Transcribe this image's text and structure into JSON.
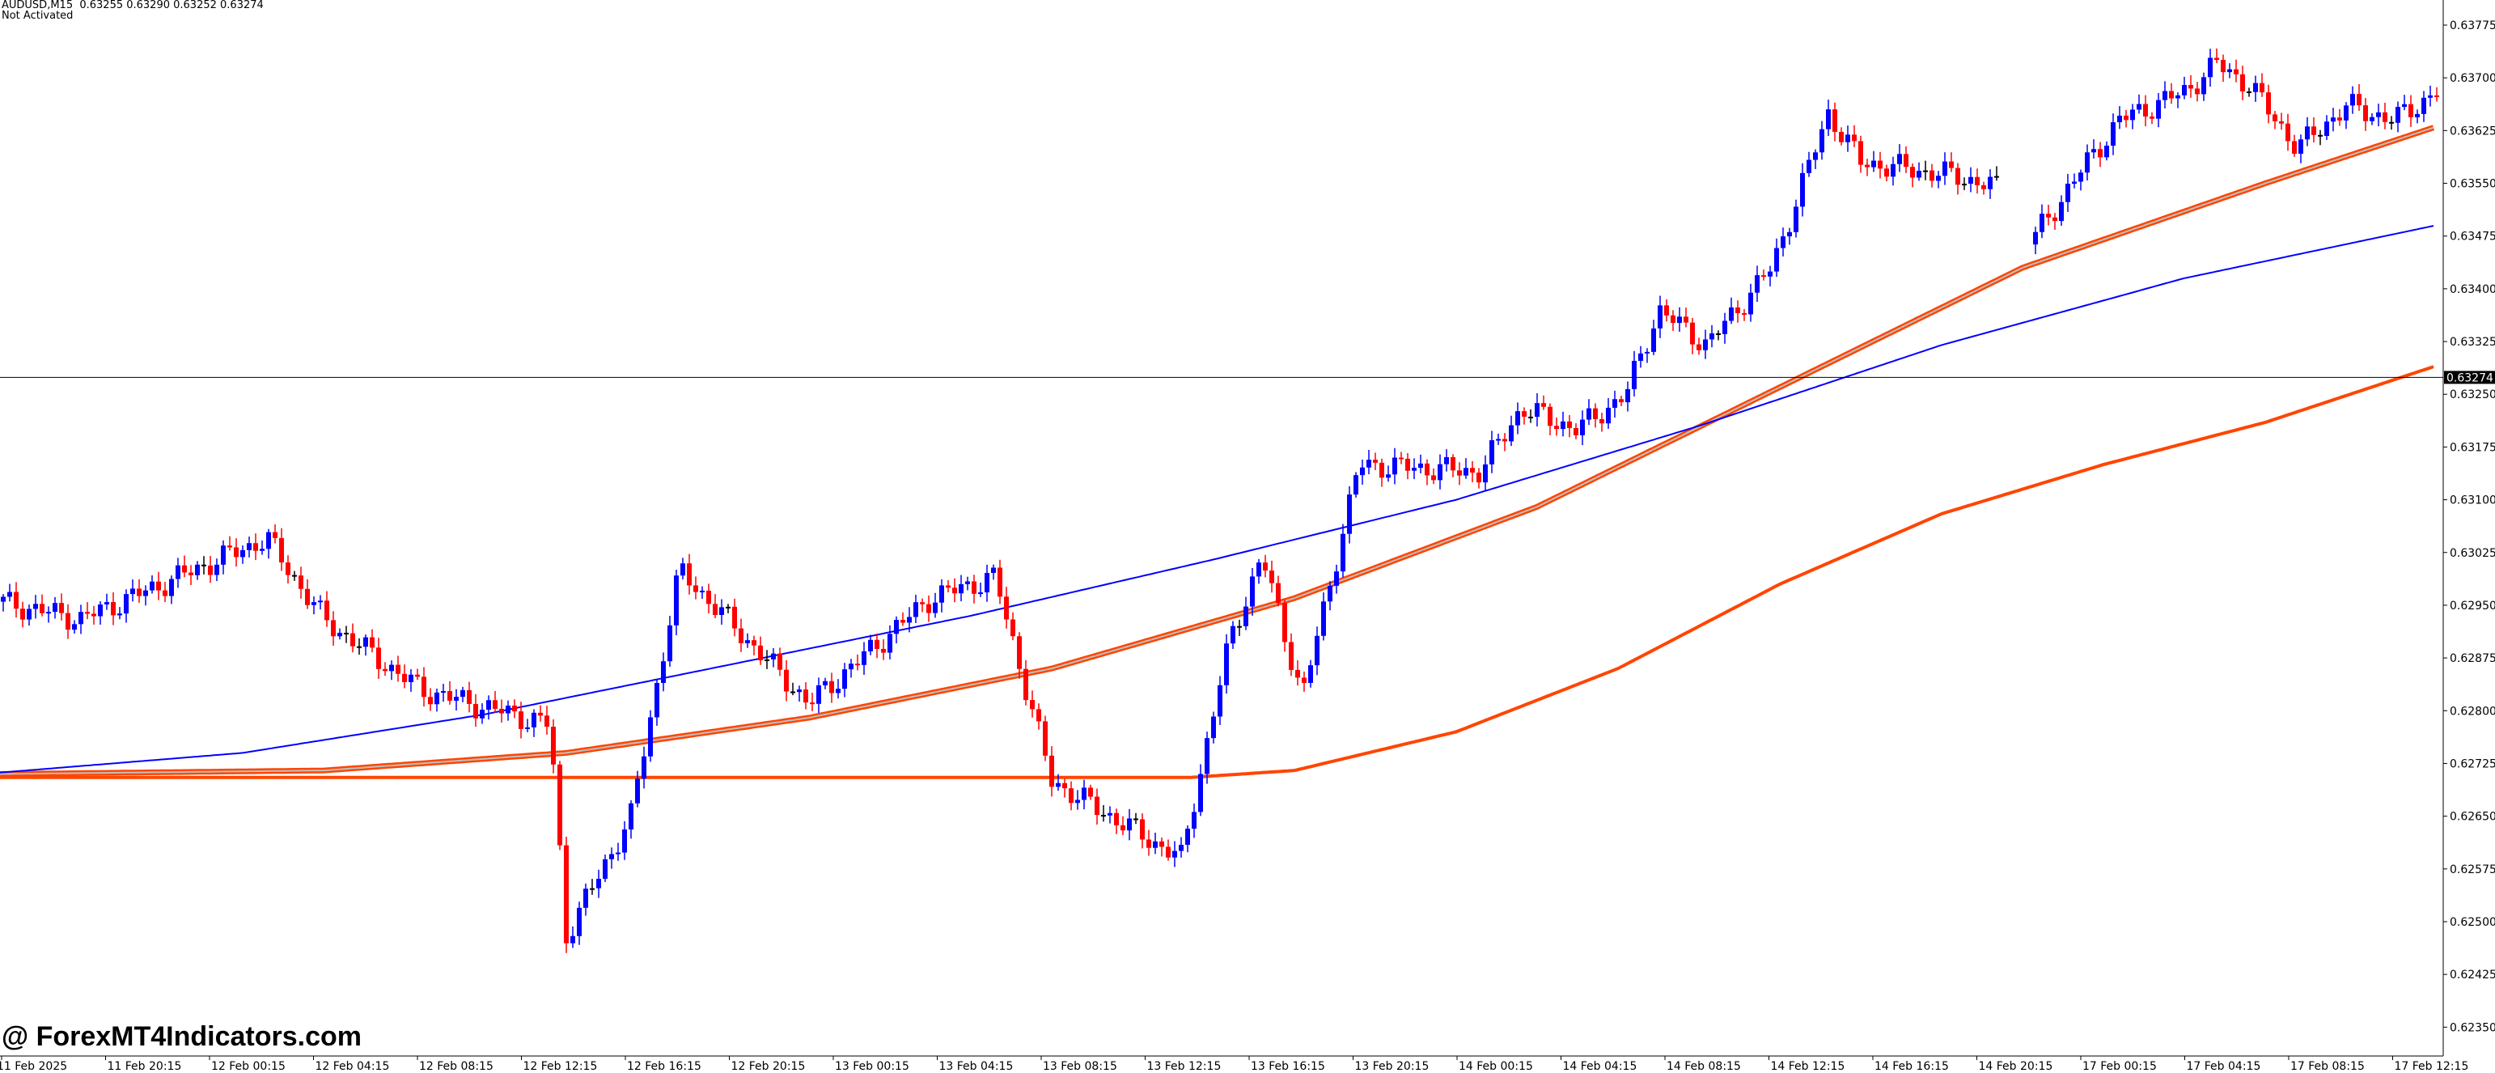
{
  "header": {
    "symbol_line": "AUDUSD,M15  0.63255 0.63290 0.63252 0.63274",
    "symbol": "AUDUSD",
    "timeframe": "M15",
    "open": "0.63255",
    "high": "0.63290",
    "low": "0.63252",
    "close": "0.63274",
    "status": "Not Activated"
  },
  "watermark": "@ ForexMT4Indicators.com",
  "colors": {
    "background": "#ffffff",
    "bull_candle": "#0000ff",
    "bear_candle": "#ff0000",
    "doji": "#000000",
    "ma_blue": "#0000ff",
    "ma_orange": "#ff4500",
    "ma_band_fill": "#c0c0c0",
    "axis": "#000000",
    "price_line": "#000000",
    "price_tag_bg": "#000000",
    "price_tag_fg": "#ffffff"
  },
  "chart_data": {
    "type": "candlestick",
    "title": "AUDUSD,M15",
    "xlabel": "",
    "ylabel": "",
    "ylim": [
      0.6232,
      0.6379
    ],
    "grid": false,
    "current_price": 0.63274,
    "y_ticks": [
      "0.63775",
      "0.63700",
      "0.63625",
      "0.63550",
      "0.63475",
      "0.63400",
      "0.63325",
      "0.63250",
      "0.63175",
      "0.63100",
      "0.63025",
      "0.62950",
      "0.62875",
      "0.62800",
      "0.62725",
      "0.62650",
      "0.62575",
      "0.62500",
      "0.62425",
      "0.62350"
    ],
    "x_ticks": [
      "11 Feb 2025",
      "11 Feb 20:15",
      "12 Feb 00:15",
      "12 Feb 04:15",
      "12 Feb 08:15",
      "12 Feb 12:15",
      "12 Feb 16:15",
      "12 Feb 20:15",
      "13 Feb 00:15",
      "13 Feb 04:15",
      "13 Feb 08:15",
      "13 Feb 12:15",
      "13 Feb 16:15",
      "13 Feb 20:15",
      "14 Feb 00:15",
      "14 Feb 04:15",
      "14 Feb 08:15",
      "14 Feb 12:15",
      "14 Feb 16:15",
      "14 Feb 20:15",
      "17 Feb 00:15",
      "17 Feb 04:15",
      "17 Feb 08:15",
      "17 Feb 12:15"
    ],
    "close_anchors": [
      [
        0,
        0.62955
      ],
      [
        5,
        0.6293
      ],
      [
        10,
        0.629
      ],
      [
        12,
        0.62885
      ],
      [
        14,
        0.6294
      ],
      [
        18,
        0.6296
      ],
      [
        24,
        0.62925
      ],
      [
        30,
        0.6295
      ],
      [
        34,
        0.62935
      ],
      [
        38,
        0.6296
      ],
      [
        41,
        0.63045
      ],
      [
        44,
        0.6309
      ],
      [
        46,
        0.6306
      ],
      [
        48,
        0.6299
      ],
      [
        50,
        0.62985
      ],
      [
        54,
        0.6291
      ],
      [
        58,
        0.6291
      ],
      [
        62,
        0.629
      ],
      [
        66,
        0.629
      ],
      [
        70,
        0.6285
      ],
      [
        74,
        0.628
      ],
      [
        78,
        0.6279
      ],
      [
        82,
        0.6281
      ],
      [
        86,
        0.628
      ],
      [
        90,
        0.6278
      ],
      [
        94,
        0.6278
      ],
      [
        96,
        0.6277
      ],
      [
        98,
        0.6256
      ],
      [
        100,
        0.6245
      ],
      [
        104,
        0.6247
      ],
      [
        108,
        0.6255
      ],
      [
        112,
        0.6262
      ],
      [
        116,
        0.627
      ],
      [
        118,
        0.6268
      ],
      [
        122,
        0.6264
      ],
      [
        124,
        0.6264
      ],
      [
        128,
        0.6272
      ],
      [
        130,
        0.6284
      ],
      [
        134,
        0.6298
      ],
      [
        138,
        0.6301
      ],
      [
        142,
        0.6296
      ],
      [
        144,
        0.6287
      ],
      [
        148,
        0.6285
      ],
      [
        152,
        0.62845
      ],
      [
        156,
        0.6289
      ],
      [
        160,
        0.6281
      ],
      [
        164,
        0.628
      ],
      [
        168,
        0.6281
      ],
      [
        172,
        0.6282
      ],
      [
        176,
        0.628
      ],
      [
        180,
        0.6283
      ],
      [
        184,
        0.6278
      ],
      [
        188,
        0.628
      ],
      [
        192,
        0.6282
      ],
      [
        196,
        0.6284
      ],
      [
        200,
        0.6286
      ],
      [
        204,
        0.6281
      ],
      [
        208,
        0.6282
      ],
      [
        212,
        0.6295
      ],
      [
        216,
        0.6298
      ],
      [
        220,
        0.6299
      ],
      [
        224,
        0.6296
      ],
      [
        228,
        0.6299
      ],
      [
        232,
        0.6294
      ],
      [
        236,
        0.6291
      ],
      [
        240,
        0.6287
      ],
      [
        244,
        0.6284
      ],
      [
        246,
        0.6276
      ],
      [
        248,
        0.6272
      ],
      [
        252,
        0.627
      ],
      [
        256,
        0.6267
      ],
      [
        260,
        0.6269
      ],
      [
        264,
        0.627
      ],
      [
        268,
        0.6268
      ],
      [
        272,
        0.627
      ],
      [
        276,
        0.6269
      ],
      [
        280,
        0.6266
      ],
      [
        284,
        0.6261
      ],
      [
        288,
        0.626
      ],
      [
        292,
        0.6262
      ],
      [
        296,
        0.6265
      ],
      [
        300,
        0.6258
      ],
      [
        304,
        0.6262
      ],
      [
        308,
        0.627
      ],
      [
        312,
        0.6287
      ],
      [
        316,
        0.6296
      ],
      [
        320,
        0.6299
      ],
      [
        324,
        0.6293
      ],
      [
        328,
        0.6292
      ],
      [
        332,
        0.629
      ],
      [
        336,
        0.6285
      ]
    ],
    "series": [
      {
        "name": "MA fast (blue)",
        "type": "line",
        "color": "#0000ff",
        "points": [
          [
            0,
            0.62712
          ],
          [
            300,
            0.6274
          ],
          [
            600,
            0.62795
          ],
          [
            900,
            0.62865
          ],
          [
            1200,
            0.62935
          ],
          [
            1500,
            0.63015
          ],
          [
            1800,
            0.631
          ],
          [
            2100,
            0.63205
          ],
          [
            2400,
            0.6332
          ],
          [
            2700,
            0.63415
          ],
          [
            3010,
            0.6349
          ]
        ]
      },
      {
        "name": "MA band (orange, double)",
        "type": "line",
        "color": "#ff4500",
        "points": [
          [
            0,
            0.6271
          ],
          [
            400,
            0.62715
          ],
          [
            700,
            0.6274
          ],
          [
            1000,
            0.6279
          ],
          [
            1300,
            0.6286
          ],
          [
            1600,
            0.6296
          ],
          [
            1900,
            0.6309
          ],
          [
            2200,
            0.6326
          ],
          [
            2500,
            0.6343
          ],
          [
            2800,
            0.6355
          ],
          [
            3010,
            0.6363
          ]
        ]
      },
      {
        "name": "MA slow (orange)",
        "type": "line",
        "color": "#ff4500",
        "points": [
          [
            0,
            0.62705
          ],
          [
            1470,
            0.62705
          ],
          [
            1600,
            0.62715
          ],
          [
            1800,
            0.6277
          ],
          [
            2000,
            0.6286
          ],
          [
            2200,
            0.6298
          ],
          [
            2400,
            0.6308
          ],
          [
            2600,
            0.6315
          ],
          [
            2800,
            0.6321
          ],
          [
            3010,
            0.6329
          ]
        ]
      }
    ]
  }
}
